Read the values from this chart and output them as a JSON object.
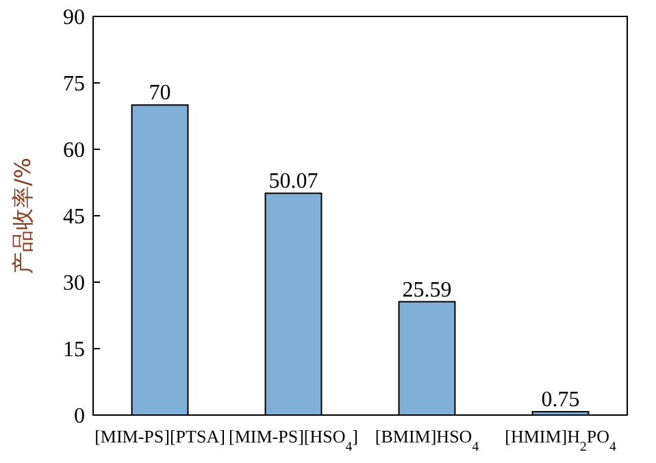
{
  "chart_data": {
    "type": "bar",
    "ylabel": "产品收率/%",
    "categories": [
      "[MIM-PS][PTSA]",
      "[MIM-PS][HSO$_{4}$]",
      "[BMIM]HSO$_{4}$",
      "[HMIM]H$_{2}$PO$_{4}$"
    ],
    "values": [
      70,
      50.07,
      25.59,
      0.75
    ],
    "color": "#80b0d8",
    "ylim": [
      0,
      90
    ],
    "yticks": [
      0,
      15,
      30,
      45,
      60,
      75,
      90
    ],
    "data_labels": true,
    "grid": false
  }
}
